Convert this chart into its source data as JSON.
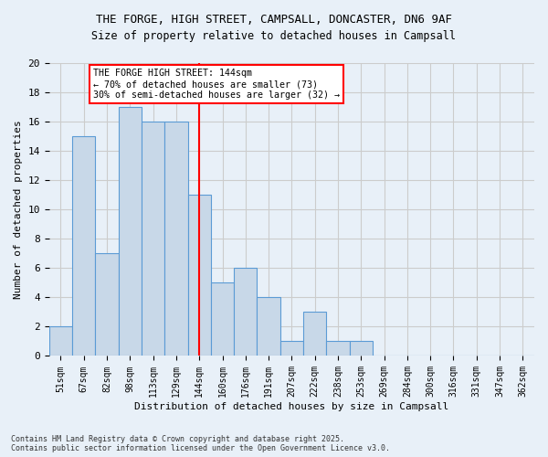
{
  "title1": "THE FORGE, HIGH STREET, CAMPSALL, DONCASTER, DN6 9AF",
  "title2": "Size of property relative to detached houses in Campsall",
  "xlabel": "Distribution of detached houses by size in Campsall",
  "ylabel": "Number of detached properties",
  "bins": [
    "51sqm",
    "67sqm",
    "82sqm",
    "98sqm",
    "113sqm",
    "129sqm",
    "144sqm",
    "160sqm",
    "176sqm",
    "191sqm",
    "207sqm",
    "222sqm",
    "238sqm",
    "253sqm",
    "269sqm",
    "284sqm",
    "300sqm",
    "316sqm",
    "331sqm",
    "347sqm",
    "362sqm"
  ],
  "values": [
    2,
    15,
    7,
    17,
    16,
    16,
    11,
    5,
    6,
    4,
    1,
    3,
    1,
    1,
    0,
    0,
    0,
    0,
    0,
    0,
    0
  ],
  "bar_color": "#c8d8e8",
  "bar_edge_color": "#5b9bd5",
  "property_line_x": 6,
  "annotation_text": "THE FORGE HIGH STREET: 144sqm\n← 70% of detached houses are smaller (73)\n30% of semi-detached houses are larger (32) →",
  "annotation_box_color": "white",
  "annotation_border_color": "red",
  "vline_color": "red",
  "grid_color": "#cccccc",
  "bg_color": "#e8f0f8",
  "footnote": "Contains HM Land Registry data © Crown copyright and database right 2025.\nContains public sector information licensed under the Open Government Licence v3.0.",
  "ylim": [
    0,
    20
  ],
  "yticks": [
    0,
    2,
    4,
    6,
    8,
    10,
    12,
    14,
    16,
    18,
    20
  ]
}
